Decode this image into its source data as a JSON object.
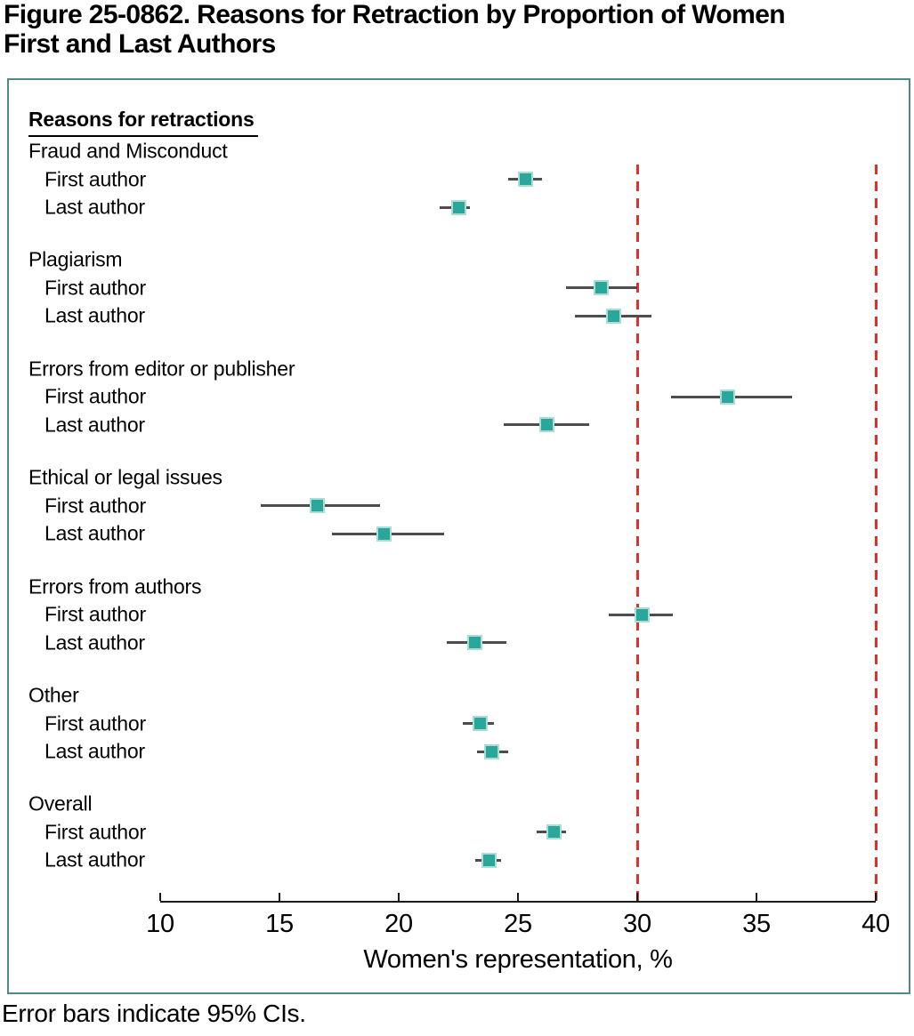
{
  "figure": {
    "title": "Figure 25-0862. Reasons for Retraction by Proportion of Women First and Last Authors",
    "caption": "Error bars indicate 95% CIs."
  },
  "panel": {
    "header": "Reasons for retractions"
  },
  "chart_data": {
    "type": "scatter",
    "variant": "forest-plot",
    "title": "Reasons for retractions",
    "xlabel": "Women's representation, %",
    "ylabel": "",
    "xlim": [
      10,
      40
    ],
    "xticks": [
      10,
      15,
      20,
      25,
      30,
      35,
      40
    ],
    "reference_lines_x": [
      30,
      40
    ],
    "grid": false,
    "legend_position": "none",
    "colors": {
      "marker": "#2aa79a",
      "marker_edge": "#a9ded7",
      "error_bar": "#4d4d4d",
      "reference_line": "#e23028",
      "panel_border": "#4f8a87"
    },
    "row_label_first": "First author",
    "row_label_last": "Last author",
    "groups": [
      {
        "label": "Fraud and Misconduct",
        "rows": [
          {
            "label": "First author",
            "value": 25.3,
            "ci_low": 24.6,
            "ci_high": 26.0
          },
          {
            "label": "Last author",
            "value": 22.5,
            "ci_low": 21.7,
            "ci_high": 23.0
          }
        ]
      },
      {
        "label": "Plagiarism",
        "rows": [
          {
            "label": "First author",
            "value": 28.5,
            "ci_low": 27.0,
            "ci_high": 30.0
          },
          {
            "label": "Last author",
            "value": 29.0,
            "ci_low": 27.4,
            "ci_high": 30.6
          }
        ]
      },
      {
        "label": "Errors from editor or publisher",
        "rows": [
          {
            "label": "First author",
            "value": 33.8,
            "ci_low": 31.4,
            "ci_high": 36.5
          },
          {
            "label": "Last author",
            "value": 26.2,
            "ci_low": 24.4,
            "ci_high": 28.0
          }
        ]
      },
      {
        "label": "Ethical or legal issues",
        "rows": [
          {
            "label": "First author",
            "value": 16.6,
            "ci_low": 14.2,
            "ci_high": 19.2
          },
          {
            "label": "Last author",
            "value": 19.4,
            "ci_low": 17.2,
            "ci_high": 21.9
          }
        ]
      },
      {
        "label": "Errors from authors",
        "rows": [
          {
            "label": "First author",
            "value": 30.2,
            "ci_low": 28.8,
            "ci_high": 31.5
          },
          {
            "label": "Last author",
            "value": 23.2,
            "ci_low": 22.0,
            "ci_high": 24.5
          }
        ]
      },
      {
        "label": "Other",
        "rows": [
          {
            "label": "First author",
            "value": 23.4,
            "ci_low": 22.7,
            "ci_high": 24.0
          },
          {
            "label": "Last author",
            "value": 23.9,
            "ci_low": 23.3,
            "ci_high": 24.6
          }
        ]
      },
      {
        "label": "Overall",
        "rows": [
          {
            "label": "First author",
            "value": 26.5,
            "ci_low": 25.8,
            "ci_high": 27.0
          },
          {
            "label": "Last author",
            "value": 23.8,
            "ci_low": 23.2,
            "ci_high": 24.3
          }
        ]
      }
    ]
  }
}
